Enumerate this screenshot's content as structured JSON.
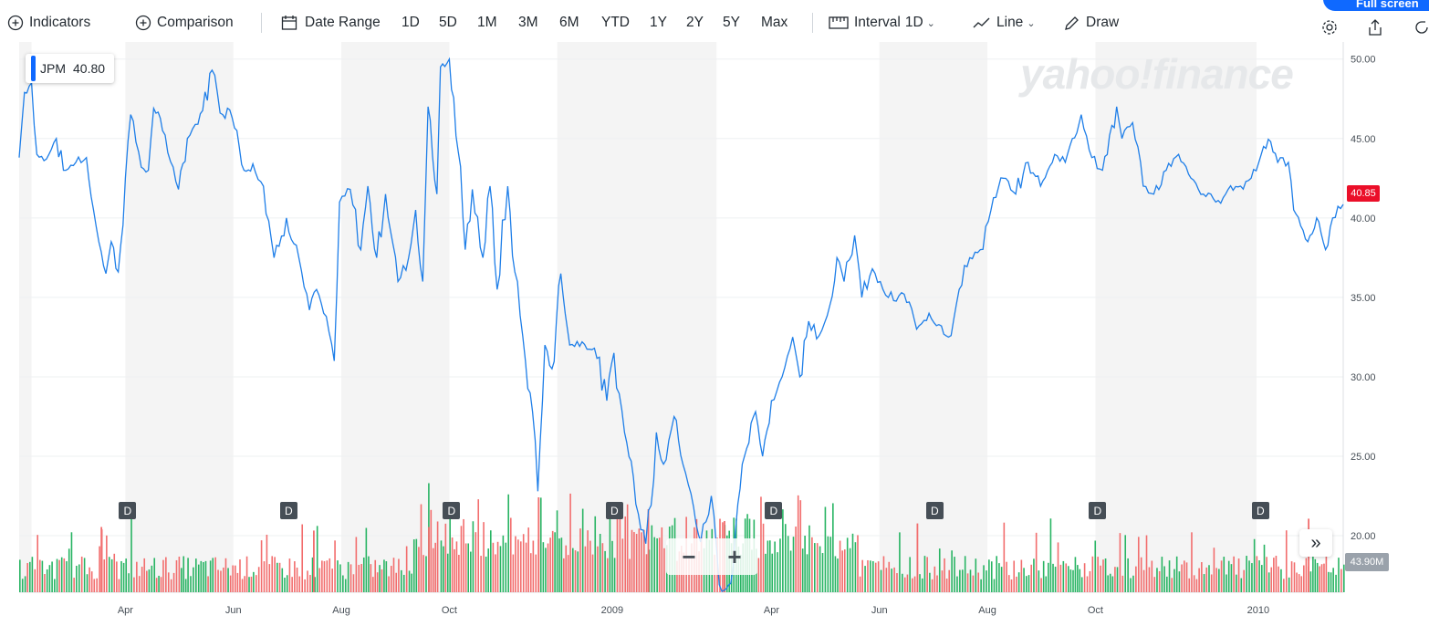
{
  "toolbar": {
    "indicators_label": "Indicators",
    "comparison_label": "Comparison",
    "date_range_label": "Date Range",
    "ranges": [
      "1D",
      "5D",
      "1M",
      "3M",
      "6M",
      "YTD",
      "1Y",
      "2Y",
      "5Y",
      "Max"
    ],
    "interval_label": "Interval",
    "interval_value": "1D",
    "charttype_label": "Line",
    "draw_label": "Draw",
    "fullscreen_label": "Full screen"
  },
  "legend": {
    "symbol": "JPM",
    "value": "40.80"
  },
  "watermark": "yahoo!finance",
  "current_price_label": "40.85",
  "volume_label": "43.90M",
  "dividend_marker": "D",
  "zoom": {
    "minus": "−",
    "plus": "+"
  },
  "expand_label": "»",
  "colors": {
    "line": "#1e7ee8",
    "vol_up": "#28b463",
    "vol_down": "#f26d6d",
    "band": "#f4f4f4",
    "grid": "#eef0f2",
    "price_tag": "#eb0f29",
    "volume_tag": "#9aa2ab",
    "accent": "#0f69ff"
  },
  "chart_data": {
    "type": "line",
    "symbol": "JPM",
    "ylim": [
      16.5,
      50.5
    ],
    "yticks": [
      "50.00",
      "45.00",
      "40.00",
      "35.00",
      "30.00",
      "25.00",
      "20.00"
    ],
    "xlim": [
      "2008-02-01",
      "2010-02-18"
    ],
    "xtick_labels": [
      "Apr",
      "Jun",
      "Aug",
      "Oct",
      "2009",
      "Apr",
      "Jun",
      "Aug",
      "Oct",
      "2010"
    ],
    "xtick_dates": [
      "2008-04-01",
      "2008-06-01",
      "2008-08-01",
      "2008-10-01",
      "2009-01-01",
      "2009-04-01",
      "2009-06-01",
      "2009-08-01",
      "2009-10-01",
      "2010-01-01"
    ],
    "dividend_dates": [
      "2008-04-02",
      "2008-07-02",
      "2008-10-02",
      "2009-01-02",
      "2009-04-02",
      "2009-07-02",
      "2009-10-02",
      "2010-01-02"
    ],
    "price_points": [
      [
        "2008-02-01",
        43.8
      ],
      [
        "2008-02-04",
        47.9
      ],
      [
        "2008-02-08",
        48.5
      ],
      [
        "2008-02-11",
        44.0
      ],
      [
        "2008-02-15",
        43.6
      ],
      [
        "2008-02-22",
        45.0
      ],
      [
        "2008-02-26",
        43.0
      ],
      [
        "2008-03-04",
        43.5
      ],
      [
        "2008-03-10",
        43.8
      ],
      [
        "2008-03-14",
        40.5
      ],
      [
        "2008-03-17",
        38.5
      ],
      [
        "2008-03-21",
        36.5
      ],
      [
        "2008-03-24",
        38.5
      ],
      [
        "2008-03-28",
        36.6
      ],
      [
        "2008-04-01",
        42.5
      ],
      [
        "2008-04-04",
        46.5
      ],
      [
        "2008-04-10",
        43.2
      ],
      [
        "2008-04-14",
        43.0
      ],
      [
        "2008-04-17",
        46.9
      ],
      [
        "2008-04-22",
        45.5
      ],
      [
        "2008-04-28",
        43.2
      ],
      [
        "2008-05-01",
        41.8
      ],
      [
        "2008-05-06",
        45.0
      ],
      [
        "2008-05-12",
        45.9
      ],
      [
        "2008-05-20",
        49.3
      ],
      [
        "2008-05-26",
        46.5
      ],
      [
        "2008-05-30",
        46.8
      ],
      [
        "2008-06-03",
        45.5
      ],
      [
        "2008-06-07",
        43.0
      ],
      [
        "2008-06-12",
        43.4
      ],
      [
        "2008-06-18",
        42.0
      ],
      [
        "2008-06-24",
        37.5
      ],
      [
        "2008-07-01",
        40.0
      ],
      [
        "2008-07-08",
        37.5
      ],
      [
        "2008-07-14",
        34.2
      ],
      [
        "2008-07-18",
        35.5
      ],
      [
        "2008-07-22",
        34.0
      ],
      [
        "2008-07-28",
        31.0
      ],
      [
        "2008-07-31",
        41.0
      ],
      [
        "2008-08-06",
        41.8
      ],
      [
        "2008-08-12",
        38.0
      ],
      [
        "2008-08-16",
        42.0
      ],
      [
        "2008-08-21",
        37.5
      ],
      [
        "2008-08-26",
        41.5
      ],
      [
        "2008-09-02",
        36.0
      ],
      [
        "2008-09-08",
        37.5
      ],
      [
        "2008-09-12",
        40.5
      ],
      [
        "2008-09-16",
        36.0
      ],
      [
        "2008-09-19",
        47.0
      ],
      [
        "2008-09-24",
        41.5
      ],
      [
        "2008-09-26",
        49.5
      ],
      [
        "2008-10-01",
        50.0
      ],
      [
        "2008-10-06",
        44.2
      ],
      [
        "2008-10-10",
        38.0
      ],
      [
        "2008-10-14",
        41.8
      ],
      [
        "2008-10-20",
        37.5
      ],
      [
        "2008-10-24",
        42.0
      ],
      [
        "2008-10-28",
        35.5
      ],
      [
        "2008-11-03",
        42.0
      ],
      [
        "2008-11-07",
        36.6
      ],
      [
        "2008-11-13",
        31.0
      ],
      [
        "2008-11-17",
        27.8
      ],
      [
        "2008-11-20",
        22.8
      ],
      [
        "2008-11-24",
        32.0
      ],
      [
        "2008-11-28",
        30.5
      ],
      [
        "2008-12-03",
        36.5
      ],
      [
        "2008-12-08",
        32.0
      ],
      [
        "2008-12-15",
        32.2
      ],
      [
        "2008-12-22",
        31.8
      ],
      [
        "2008-12-29",
        28.5
      ],
      [
        "2009-01-02",
        31.5
      ],
      [
        "2009-01-08",
        26.5
      ],
      [
        "2009-01-13",
        23.7
      ],
      [
        "2009-01-20",
        19.5
      ],
      [
        "2009-01-26",
        26.5
      ],
      [
        "2009-01-30",
        24.5
      ],
      [
        "2009-02-05",
        27.5
      ],
      [
        "2009-02-10",
        24.5
      ],
      [
        "2009-02-16",
        21.8
      ],
      [
        "2009-02-20",
        19.6
      ],
      [
        "2009-02-26",
        22.5
      ],
      [
        "2009-03-04",
        16.5
      ],
      [
        "2009-03-09",
        17.0
      ],
      [
        "2009-03-13",
        22.0
      ],
      [
        "2009-03-18",
        25.5
      ],
      [
        "2009-03-23",
        27.8
      ],
      [
        "2009-03-27",
        25.0
      ],
      [
        "2009-04-01",
        28.5
      ],
      [
        "2009-04-07",
        30.0
      ],
      [
        "2009-04-13",
        32.5
      ],
      [
        "2009-04-17",
        30.0
      ],
      [
        "2009-04-22",
        33.5
      ],
      [
        "2009-04-28",
        32.6
      ],
      [
        "2009-05-04",
        34.5
      ],
      [
        "2009-05-08",
        37.5
      ],
      [
        "2009-05-12",
        36.0
      ],
      [
        "2009-05-18",
        38.9
      ],
      [
        "2009-05-22",
        35.0
      ],
      [
        "2009-05-28",
        36.8
      ],
      [
        "2009-06-03",
        35.5
      ],
      [
        "2009-06-09",
        34.8
      ],
      [
        "2009-06-15",
        35.2
      ],
      [
        "2009-06-22",
        33.0
      ],
      [
        "2009-06-29",
        34.0
      ],
      [
        "2009-07-06",
        33.2
      ],
      [
        "2009-07-10",
        32.5
      ],
      [
        "2009-07-16",
        35.5
      ],
      [
        "2009-07-22",
        37.5
      ],
      [
        "2009-07-28",
        38.0
      ],
      [
        "2009-08-03",
        40.5
      ],
      [
        "2009-08-10",
        42.5
      ],
      [
        "2009-08-17",
        41.5
      ],
      [
        "2009-08-24",
        43.5
      ],
      [
        "2009-08-31",
        42.0
      ],
      [
        "2009-09-08",
        44.0
      ],
      [
        "2009-09-14",
        43.5
      ],
      [
        "2009-09-18",
        45.0
      ],
      [
        "2009-09-23",
        46.5
      ],
      [
        "2009-09-29",
        43.8
      ],
      [
        "2009-10-05",
        43.0
      ],
      [
        "2009-10-13",
        47.0
      ],
      [
        "2009-10-16",
        45.0
      ],
      [
        "2009-10-22",
        46.0
      ],
      [
        "2009-10-28",
        42.0
      ],
      [
        "2009-11-03",
        41.5
      ],
      [
        "2009-11-10",
        43.0
      ],
      [
        "2009-11-17",
        44.0
      ],
      [
        "2009-11-24",
        42.5
      ],
      [
        "2009-12-01",
        41.5
      ],
      [
        "2009-12-08",
        41.0
      ],
      [
        "2009-12-15",
        41.8
      ],
      [
        "2009-12-22",
        42.0
      ],
      [
        "2009-12-28",
        42.5
      ],
      [
        "2010-01-04",
        44.5
      ],
      [
        "2010-01-08",
        44.8
      ],
      [
        "2010-01-12",
        43.5
      ],
      [
        "2010-01-18",
        43.5
      ],
      [
        "2010-01-21",
        40.5
      ],
      [
        "2010-01-25",
        39.5
      ],
      [
        "2010-01-29",
        38.5
      ],
      [
        "2010-02-03",
        40.0
      ],
      [
        "2010-02-08",
        38.0
      ],
      [
        "2010-02-12",
        40.0
      ],
      [
        "2010-02-18",
        40.85
      ]
    ],
    "volume_spikes": [
      [
        "2008-03-18",
        0.55
      ],
      [
        "2008-07-16",
        0.52
      ],
      [
        "2008-09-19",
        0.55
      ],
      [
        "2008-11-20",
        0.8
      ],
      [
        "2009-01-21",
        0.7
      ],
      [
        "2009-03-05",
        0.6
      ],
      [
        "2009-06-22",
        0.58
      ],
      [
        "2010-01-29",
        0.62
      ]
    ]
  }
}
